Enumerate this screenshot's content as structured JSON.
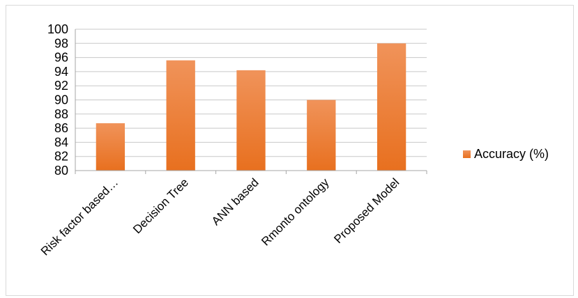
{
  "chart_data": {
    "type": "bar",
    "title": "",
    "xlabel": "",
    "ylabel": "",
    "categories": [
      "Risk factor based…",
      "Decision Tree",
      "ANN based",
      "Rmonto ontology",
      "Proposed Model"
    ],
    "series": [
      {
        "name": "Accuracy (%)",
        "values": [
          86.7,
          95.6,
          94.2,
          90.0,
          98.0
        ],
        "color": "#ed7d31"
      }
    ],
    "ylim": [
      80,
      100
    ],
    "yticks": [
      80,
      82,
      84,
      86,
      88,
      90,
      92,
      94,
      96,
      98,
      100
    ],
    "grid": true,
    "legend": "right"
  }
}
